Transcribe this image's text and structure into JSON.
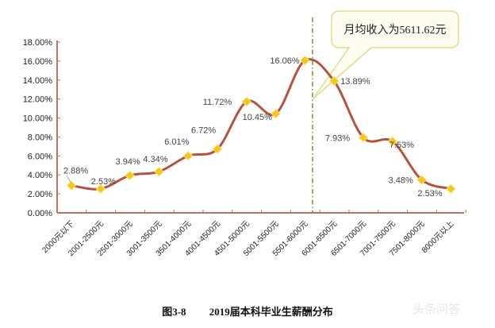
{
  "chart_data": {
    "type": "line",
    "title": "2019届本科毕业生薪酬分布",
    "figure_number": "图3-8",
    "xlabel": "",
    "ylabel": "",
    "categories": [
      "2000元以下",
      "2001-2500元",
      "2501-3000元",
      "3001-3500元",
      "3501-4000元",
      "4001-4500元",
      "4501-5000元",
      "5001-5500元",
      "5501-6000元",
      "6001-6500元",
      "6501-7000元",
      "7001-7500元",
      "7501-8000元",
      "8000元以上"
    ],
    "series": [
      {
        "name": "薪酬分布",
        "values": [
          2.88,
          2.53,
          3.94,
          4.34,
          6.01,
          6.72,
          11.72,
          10.45,
          16.06,
          13.89,
          7.93,
          7.53,
          3.48,
          2.53
        ],
        "labels": [
          "2.88%",
          "2.53%",
          "3.94%",
          "4.34%",
          "6.01%",
          "6.72%",
          "11.72%",
          "10.45%",
          "16.06%",
          "13.89%",
          "7.93%",
          "7.53%",
          "3.48%",
          "2.53%"
        ],
        "line_color": "#b5533c",
        "marker_color": "#f5c518",
        "marker": "diamond",
        "smooth": true
      }
    ],
    "yticks": [
      "0.00%",
      "2.00%",
      "4.00%",
      "6.00%",
      "8.00%",
      "10.00%",
      "12.00%",
      "14.00%",
      "16.00%",
      "18.00%"
    ],
    "ylim": [
      0,
      18
    ],
    "grid": false,
    "legend": null,
    "annotations": [
      {
        "type": "callout",
        "text": "月均收入为5611.62元",
        "points_to_x": 5611.62
      },
      {
        "type": "vline",
        "style": "dash-dot",
        "position": "between 5501-6000元 (left side)",
        "color": "#8a8a3a"
      }
    ],
    "axis_color": "#c0725a"
  },
  "caption": {
    "number": "图3-8",
    "text": "2019届本科毕业生薪酬分布"
  },
  "watermark": "头条问答"
}
